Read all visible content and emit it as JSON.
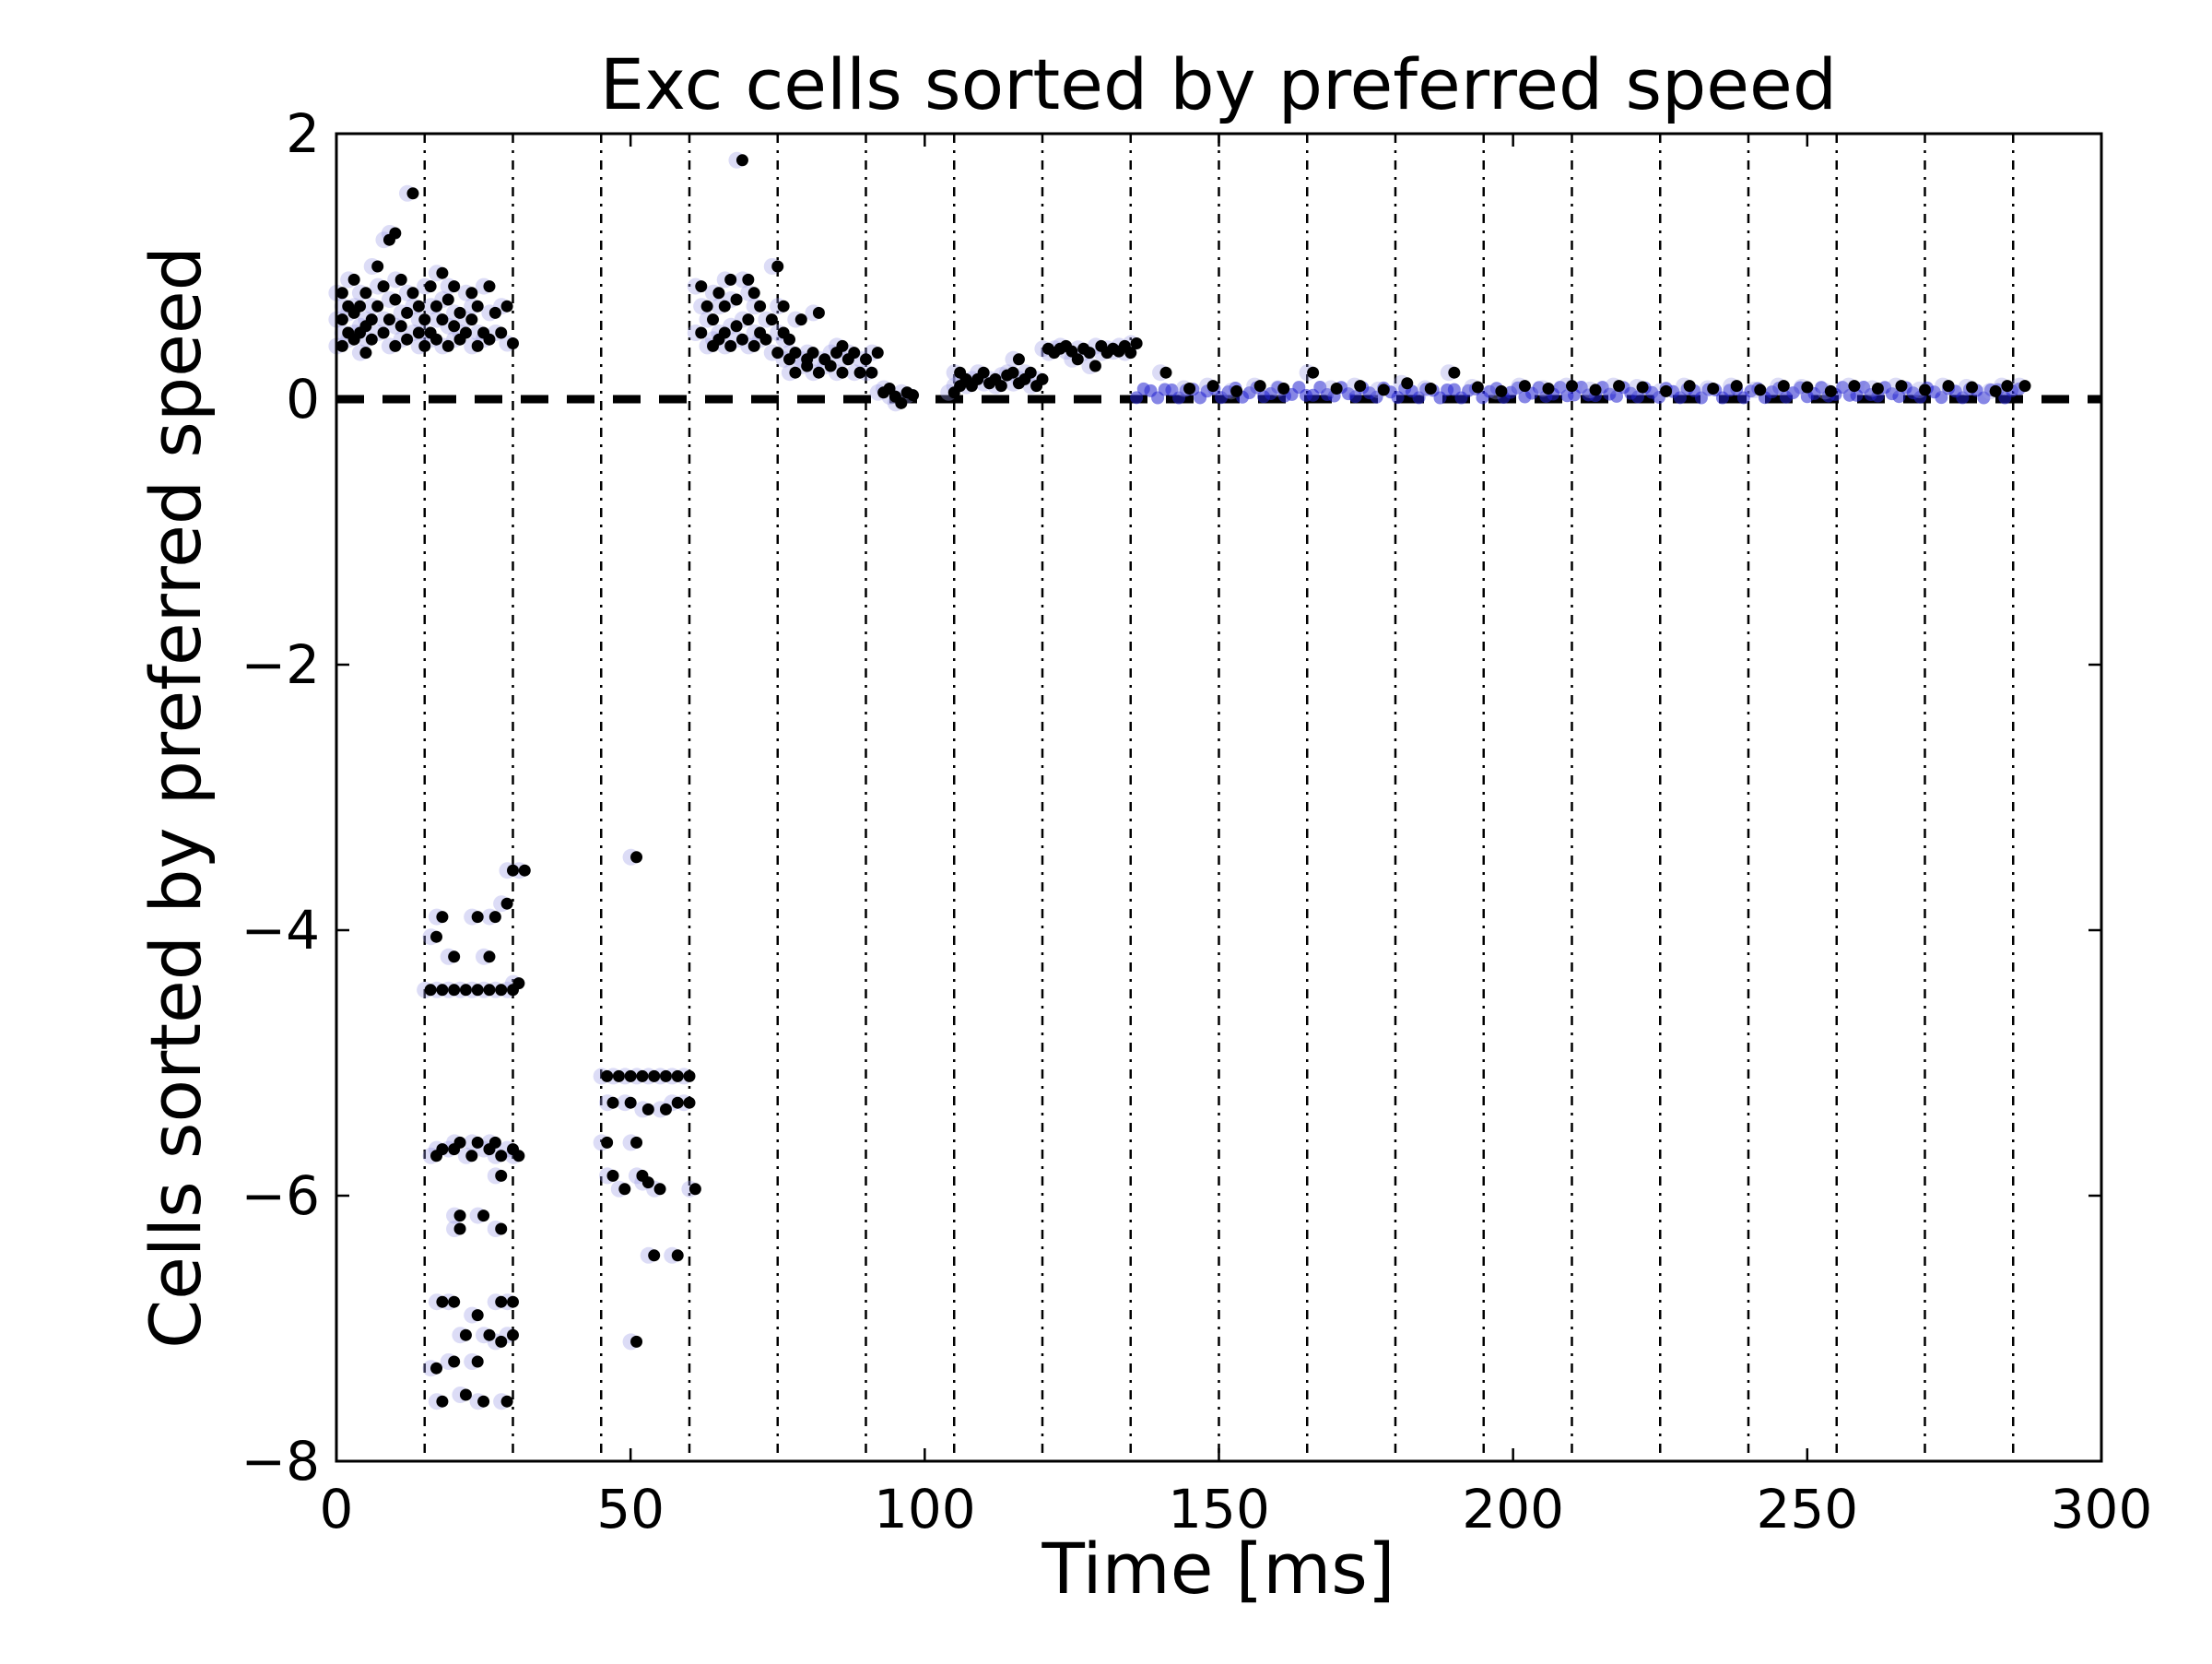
{
  "chart_data": {
    "type": "scatter",
    "title": "Exc cells sorted by preferred speed",
    "xlabel": "Time [ms]",
    "ylabel": "Cells sorted by preferred speed",
    "xlim": [
      0,
      300
    ],
    "ylim": [
      -8,
      2
    ],
    "xticks": [
      0,
      50,
      100,
      150,
      200,
      250,
      300
    ],
    "yticks": [
      2,
      0,
      -2,
      -4,
      -6,
      -8
    ],
    "x_tick_labels": [
      "0",
      "50",
      "100",
      "150",
      "200",
      "250",
      "300"
    ],
    "y_tick_labels": [
      "2",
      "0",
      "−2",
      "−4",
      "−6",
      "−8"
    ],
    "vertical_reference_lines_ms": [
      15,
      30,
      45,
      60,
      75,
      90,
      105,
      120,
      135,
      150,
      165,
      180,
      195,
      210,
      225,
      240,
      255,
      270,
      285
    ],
    "horizontal_reference_line_y": 0,
    "colors": {
      "spike": "#000000",
      "spike_halo": "#9a9ae6",
      "background_blue": "#2323d0"
    },
    "series": [
      {
        "name": "spikes",
        "points": [
          [
            1,
            0.4
          ],
          [
            1,
            0.6
          ],
          [
            1,
            0.8
          ],
          [
            2,
            0.5
          ],
          [
            2,
            0.7
          ],
          [
            3,
            0.45
          ],
          [
            3,
            0.9
          ],
          [
            3,
            0.65
          ],
          [
            4,
            0.5
          ],
          [
            4,
            0.7
          ],
          [
            5,
            0.35
          ],
          [
            5,
            0.55
          ],
          [
            5,
            0.8
          ],
          [
            6,
            0.6
          ],
          [
            6,
            0.45
          ],
          [
            7,
            1.0
          ],
          [
            7,
            0.7
          ],
          [
            8,
            0.5
          ],
          [
            8,
            0.85
          ],
          [
            9,
            1.2
          ],
          [
            9,
            0.6
          ],
          [
            10,
            1.25
          ],
          [
            10,
            0.4
          ],
          [
            10,
            0.75
          ],
          [
            11,
            0.55
          ],
          [
            11,
            0.9
          ],
          [
            12,
            0.65
          ],
          [
            12,
            0.45
          ],
          [
            13,
            1.55
          ],
          [
            13,
            0.8
          ],
          [
            14,
            0.5
          ],
          [
            14,
            0.7
          ],
          [
            15,
            0.6
          ],
          [
            15,
            0.4
          ],
          [
            16,
            0.85
          ],
          [
            16,
            0.5
          ],
          [
            17,
            0.7
          ],
          [
            17,
            0.45
          ],
          [
            18,
            0.95
          ],
          [
            18,
            0.6
          ],
          [
            19,
            0.4
          ],
          [
            19,
            0.75
          ],
          [
            20,
            0.55
          ],
          [
            20,
            0.85
          ],
          [
            21,
            0.65
          ],
          [
            21,
            0.45
          ],
          [
            22,
            0.5
          ],
          [
            23,
            0.8
          ],
          [
            23,
            0.6
          ],
          [
            24,
            0.4
          ],
          [
            24,
            0.7
          ],
          [
            25,
            0.5
          ],
          [
            26,
            0.85
          ],
          [
            26,
            0.45
          ],
          [
            27,
            0.65
          ],
          [
            28,
            0.5
          ],
          [
            29,
            0.7
          ],
          [
            30,
            0.42
          ],
          [
            62,
            0.5
          ],
          [
            62,
            0.85
          ],
          [
            63,
            0.7
          ],
          [
            64,
            0.4
          ],
          [
            64,
            0.6
          ],
          [
            65,
            0.8
          ],
          [
            65,
            0.45
          ],
          [
            66,
            0.5
          ],
          [
            66,
            0.7
          ],
          [
            67,
            0.9
          ],
          [
            67,
            0.4
          ],
          [
            68,
            0.55
          ],
          [
            68,
            0.75
          ],
          [
            69,
            1.8
          ],
          [
            69,
            0.45
          ],
          [
            70,
            0.9
          ],
          [
            70,
            0.6
          ],
          [
            71,
            0.4
          ],
          [
            71,
            0.8
          ],
          [
            72,
            0.5
          ],
          [
            72,
            0.7
          ],
          [
            73,
            0.45
          ],
          [
            74,
            0.6
          ],
          [
            75,
            0.35
          ],
          [
            75,
            1.0
          ],
          [
            76,
            0.5
          ],
          [
            76,
            0.7
          ],
          [
            77,
            0.3
          ],
          [
            77,
            0.45
          ],
          [
            78,
            0.35
          ],
          [
            78,
            0.2
          ],
          [
            79,
            0.6
          ],
          [
            80,
            0.3
          ],
          [
            80,
            0.25
          ],
          [
            81,
            0.35
          ],
          [
            82,
            0.65
          ],
          [
            82,
            0.2
          ],
          [
            83,
            0.3
          ],
          [
            84,
            0.25
          ],
          [
            85,
            0.35
          ],
          [
            86,
            0.4
          ],
          [
            86,
            0.2
          ],
          [
            87,
            0.3
          ],
          [
            88,
            0.35
          ],
          [
            89,
            0.2
          ],
          [
            90,
            0.3
          ],
          [
            91,
            0.2
          ],
          [
            92,
            0.35
          ],
          [
            93,
            0.05
          ],
          [
            94,
            0.08
          ],
          [
            95,
            0.02
          ],
          [
            96,
            -0.03
          ],
          [
            97,
            0.05
          ],
          [
            98,
            0.03
          ],
          [
            105,
            0.05
          ],
          [
            106,
            0.1
          ],
          [
            106,
            0.2
          ],
          [
            107,
            0.15
          ],
          [
            108,
            0.1
          ],
          [
            109,
            0.15
          ],
          [
            110,
            0.2
          ],
          [
            111,
            0.12
          ],
          [
            112,
            0.15
          ],
          [
            113,
            0.1
          ],
          [
            114,
            0.18
          ],
          [
            115,
            0.2
          ],
          [
            116,
            0.3
          ],
          [
            116,
            0.12
          ],
          [
            117,
            0.15
          ],
          [
            118,
            0.2
          ],
          [
            119,
            0.1
          ],
          [
            120,
            0.15
          ],
          [
            121,
            0.38
          ],
          [
            122,
            0.35
          ],
          [
            123,
            0.38
          ],
          [
            124,
            0.4
          ],
          [
            125,
            0.36
          ],
          [
            126,
            0.3
          ],
          [
            127,
            0.38
          ],
          [
            128,
            0.35
          ],
          [
            129,
            0.25
          ],
          [
            130,
            0.4
          ],
          [
            131,
            0.35
          ],
          [
            132,
            0.38
          ],
          [
            133,
            0.36
          ],
          [
            134,
            0.4
          ],
          [
            135,
            0.35
          ],
          [
            136,
            0.42
          ],
          [
            141,
            0.2
          ],
          [
            145,
            0.08
          ],
          [
            149,
            0.1
          ],
          [
            153,
            0.06
          ],
          [
            157,
            0.1
          ],
          [
            161,
            0.08
          ],
          [
            166,
            0.2
          ],
          [
            170,
            0.08
          ],
          [
            174,
            0.1
          ],
          [
            178,
            0.07
          ],
          [
            182,
            0.12
          ],
          [
            186,
            0.08
          ],
          [
            190,
            0.2
          ],
          [
            194,
            0.09
          ],
          [
            198,
            0.06
          ],
          [
            202,
            0.1
          ],
          [
            206,
            0.08
          ],
          [
            210,
            0.1
          ],
          [
            214,
            0.07
          ],
          [
            218,
            0.1
          ],
          [
            222,
            0.09
          ],
          [
            226,
            0.06
          ],
          [
            230,
            0.1
          ],
          [
            234,
            0.08
          ],
          [
            238,
            0.1
          ],
          [
            242,
            0.07
          ],
          [
            246,
            0.1
          ],
          [
            250,
            0.09
          ],
          [
            254,
            0.06
          ],
          [
            258,
            0.1
          ],
          [
            262,
            0.08
          ],
          [
            266,
            0.1
          ],
          [
            270,
            0.07
          ],
          [
            274,
            0.1
          ],
          [
            278,
            0.09
          ],
          [
            282,
            0.06
          ],
          [
            284,
            0.1
          ],
          [
            287,
            0.1
          ],
          [
            17,
            -4.05
          ],
          [
            18,
            -3.9
          ],
          [
            20,
            -4.2
          ],
          [
            16,
            -4.45
          ],
          [
            18,
            -4.45
          ],
          [
            20,
            -4.45
          ],
          [
            22,
            -4.45
          ],
          [
            24,
            -4.45
          ],
          [
            26,
            -4.45
          ],
          [
            28,
            -4.45
          ],
          [
            30,
            -4.45
          ],
          [
            31,
            -4.4
          ],
          [
            24,
            -3.9
          ],
          [
            26,
            -4.2
          ],
          [
            27,
            -3.9
          ],
          [
            29,
            -3.8
          ],
          [
            30,
            -3.55
          ],
          [
            32,
            -3.55
          ],
          [
            17,
            -5.7
          ],
          [
            18,
            -5.65
          ],
          [
            20,
            -5.65
          ],
          [
            21,
            -5.6
          ],
          [
            23,
            -5.7
          ],
          [
            24,
            -5.6
          ],
          [
            26,
            -5.65
          ],
          [
            27,
            -5.6
          ],
          [
            28,
            -5.7
          ],
          [
            30,
            -5.65
          ],
          [
            31,
            -5.7
          ],
          [
            28,
            -5.85
          ],
          [
            21,
            -6.15
          ],
          [
            21,
            -6.25
          ],
          [
            25,
            -6.15
          ],
          [
            28,
            -6.25
          ],
          [
            18,
            -6.8
          ],
          [
            20,
            -6.8
          ],
          [
            24,
            -6.9
          ],
          [
            28,
            -6.8
          ],
          [
            30,
            -6.8
          ],
          [
            17,
            -7.3
          ],
          [
            20,
            -7.25
          ],
          [
            22,
            -7.05
          ],
          [
            24,
            -7.25
          ],
          [
            26,
            -7.05
          ],
          [
            28,
            -7.1
          ],
          [
            30,
            -7.05
          ],
          [
            18,
            -7.55
          ],
          [
            22,
            -7.5
          ],
          [
            25,
            -7.55
          ],
          [
            29,
            -7.55
          ],
          [
            46,
            -5.1
          ],
          [
            48,
            -5.1
          ],
          [
            50,
            -5.1
          ],
          [
            52,
            -5.1
          ],
          [
            54,
            -5.1
          ],
          [
            56,
            -5.1
          ],
          [
            58,
            -5.1
          ],
          [
            60,
            -5.1
          ],
          [
            47,
            -5.3
          ],
          [
            50,
            -5.3
          ],
          [
            53,
            -5.35
          ],
          [
            56,
            -5.35
          ],
          [
            58,
            -5.3
          ],
          [
            60,
            -5.3
          ],
          [
            46,
            -5.6
          ],
          [
            51,
            -5.6
          ],
          [
            47,
            -5.85
          ],
          [
            52,
            -5.85
          ],
          [
            49,
            -5.95
          ],
          [
            53,
            -5.9
          ],
          [
            55,
            -5.95
          ],
          [
            61,
            -5.95
          ],
          [
            54,
            -6.45
          ],
          [
            58,
            -6.45
          ],
          [
            51,
            -3.45
          ],
          [
            51,
            -7.1
          ]
        ]
      }
    ]
  }
}
